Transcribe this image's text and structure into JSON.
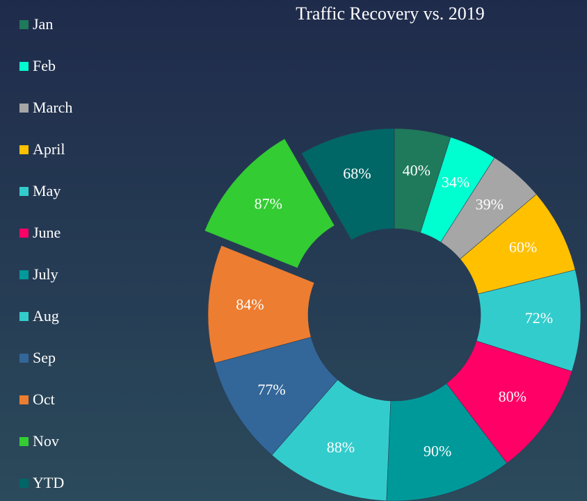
{
  "chart_data": {
    "type": "donut",
    "title": "Traffic Recovery vs. 2019",
    "categories": [
      "Jan",
      "Feb",
      "March",
      "April",
      "May",
      "June",
      "July",
      "Aug",
      "Sep",
      "Oct",
      "Nov",
      "YTD"
    ],
    "values": [
      40,
      34,
      39,
      60,
      72,
      80,
      90,
      88,
      77,
      84,
      87,
      68
    ],
    "value_labels": [
      "40%",
      "34%",
      "39%",
      "60%",
      "72%",
      "80%",
      "90%",
      "88%",
      "77%",
      "84%",
      "87%",
      "68%"
    ],
    "colors": [
      "#1e7a5a",
      "#00ffd0",
      "#a6a6a6",
      "#ffc000",
      "#33cccc",
      "#ff0066",
      "#009999",
      "#33cccc",
      "#336699",
      "#ed7d31",
      "#33cc33",
      "#006666"
    ],
    "explode": "Nov",
    "legend": "left"
  }
}
